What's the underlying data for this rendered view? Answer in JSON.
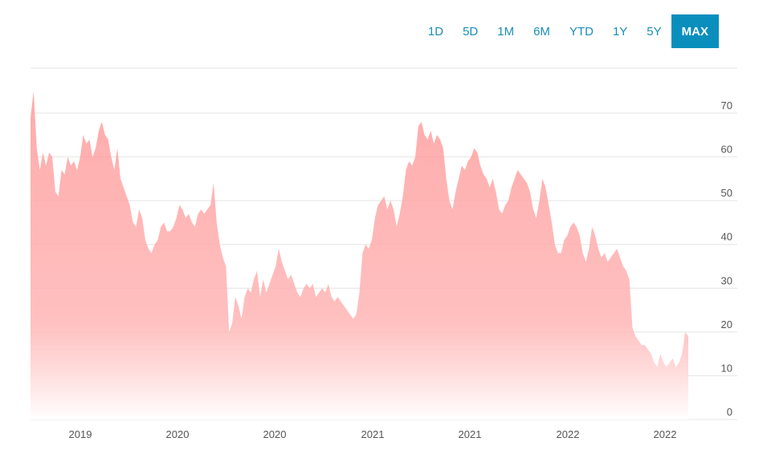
{
  "range_selector": {
    "options": [
      "1D",
      "5D",
      "1M",
      "6M",
      "YTD",
      "1Y",
      "5Y",
      "MAX"
    ],
    "active": "MAX"
  },
  "colors": {
    "area_top": "#ff9b9b",
    "area_bottom": "#ffffff",
    "accent": "#0a8fbd",
    "grid": "#e4e4e4",
    "button_text": "#1a8db8"
  },
  "chart_data": {
    "type": "area",
    "title": "",
    "xlabel": "",
    "ylabel": "",
    "ylim": [
      0,
      75
    ],
    "y_ticks": [
      0,
      10,
      20,
      30,
      40,
      50,
      60,
      70
    ],
    "x_tick_labels": [
      "2019",
      "2020",
      "2020",
      "2021",
      "2021",
      "2022",
      "2022"
    ],
    "grid": true,
    "series": [
      {
        "values": [
          69,
          75,
          62,
          57,
          61,
          58,
          61,
          60,
          52,
          51,
          57,
          56,
          60,
          58,
          59,
          57,
          60,
          65,
          63,
          64,
          60,
          62,
          66,
          68,
          65,
          64,
          60,
          57,
          62,
          55,
          53,
          51,
          49,
          45,
          44,
          48,
          46,
          41,
          39,
          38,
          40,
          41,
          44,
          45,
          43,
          43,
          44,
          46,
          49,
          48,
          46,
          47,
          45,
          44,
          47,
          48,
          47,
          48,
          49,
          54,
          45,
          40,
          37,
          35,
          20,
          22,
          28,
          26,
          23,
          28,
          30,
          29,
          32,
          34,
          28,
          32,
          29,
          31,
          33,
          35,
          39,
          36,
          34,
          32,
          33,
          31,
          29,
          28,
          30,
          31,
          30,
          31,
          28,
          29,
          30,
          29,
          31,
          28,
          27,
          28,
          27,
          26,
          25,
          24,
          23,
          24,
          29,
          38,
          40,
          39,
          41,
          46,
          49,
          50,
          51,
          48,
          50,
          48,
          44,
          47,
          51,
          57,
          59,
          58,
          60,
          67,
          68,
          65,
          64,
          66,
          63,
          65,
          64,
          62,
          55,
          50,
          48,
          52,
          55,
          58,
          57,
          59,
          60,
          62,
          61,
          58,
          56,
          55,
          53,
          55,
          52,
          48,
          47,
          49,
          50,
          53,
          55,
          57,
          56,
          55,
          54,
          52,
          48,
          46,
          50,
          55,
          53,
          49,
          45,
          40,
          38,
          38,
          41,
          42,
          44,
          45,
          44,
          42,
          38,
          36,
          39,
          44,
          42,
          39,
          37,
          38,
          36,
          37,
          38,
          39,
          37,
          35,
          34,
          32,
          21,
          19,
          18,
          17,
          17,
          16,
          15,
          13,
          12,
          15,
          13,
          12,
          13,
          14,
          12,
          13,
          15,
          20,
          19
        ]
      }
    ]
  }
}
